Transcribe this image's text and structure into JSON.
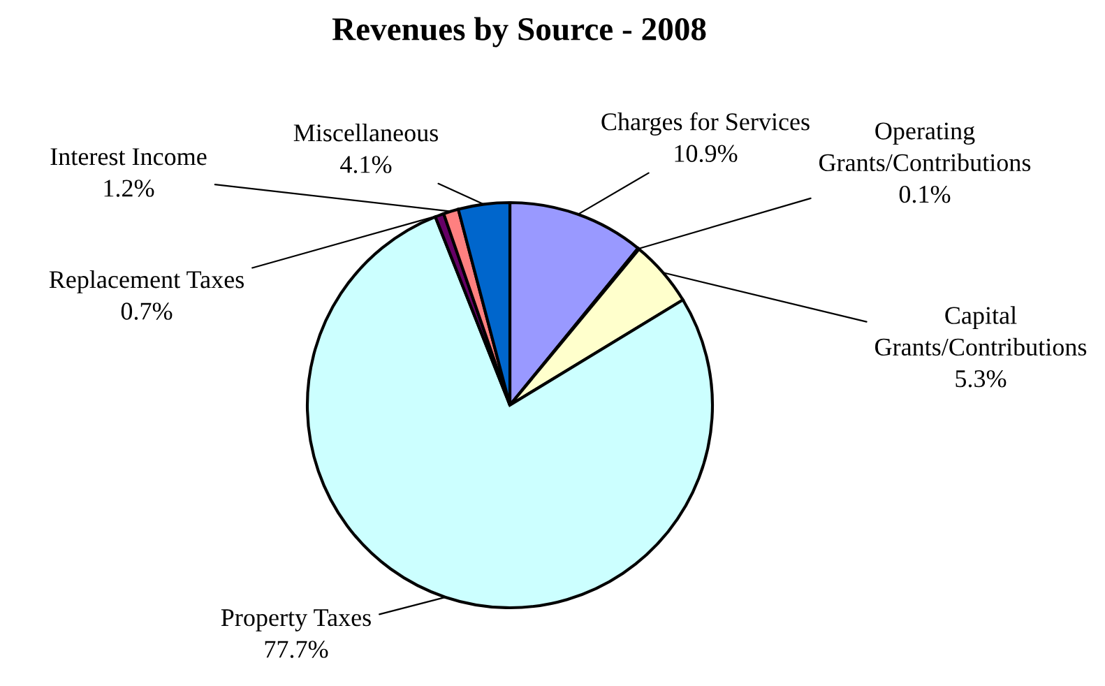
{
  "chart_data": {
    "type": "pie",
    "title": "Revenues by Source - 2008",
    "categories": [
      "Charges for Services",
      "Operating\nGrants/Contributions",
      "Capital\nGrants/Contributions",
      "Property Taxes",
      "Replacement Taxes",
      "Interest Income",
      "Miscellaneous"
    ],
    "values": [
      10.9,
      0.1,
      5.3,
      77.7,
      0.7,
      1.2,
      4.1
    ],
    "colors": [
      "#9999ff",
      "#993366",
      "#ffffcc",
      "#ccffff",
      "#660066",
      "#ff8080",
      "#0066cc"
    ],
    "value_labels": [
      "10.9%",
      "0.1%",
      "5.3%",
      "77.7%",
      "0.7%",
      "1.2%",
      "4.1%"
    ],
    "legend": false
  }
}
